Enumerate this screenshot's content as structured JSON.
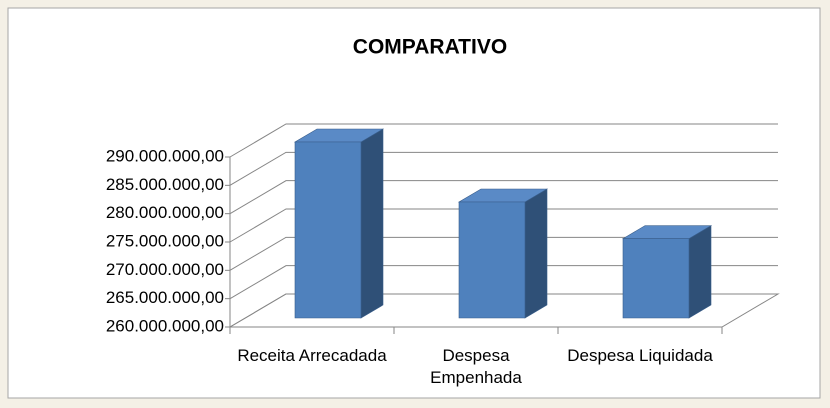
{
  "chart_data": {
    "type": "bar3d",
    "title": "COMPARATIVO",
    "categories": [
      "Receita Arrecadada",
      "Despesa Empenhada",
      "Despesa Liquidada"
    ],
    "values": [
      286400000,
      277400000,
      271900000
    ],
    "color": "#4f81bd",
    "ylim": [
      260000000,
      290000000
    ],
    "yticks": [
      {
        "value": 260000000,
        "label": "260.000.000,00"
      },
      {
        "value": 265000000,
        "label": "265.000.000,00"
      },
      {
        "value": 270000000,
        "label": "270.000.000,00"
      },
      {
        "value": 275000000,
        "label": "275.000.000,00"
      },
      {
        "value": 280000000,
        "label": "280.000.000,00"
      },
      {
        "value": 285000000,
        "label": "285.000.000,00"
      },
      {
        "value": 290000000,
        "label": "290.000.000,00"
      }
    ],
    "grid": true
  }
}
